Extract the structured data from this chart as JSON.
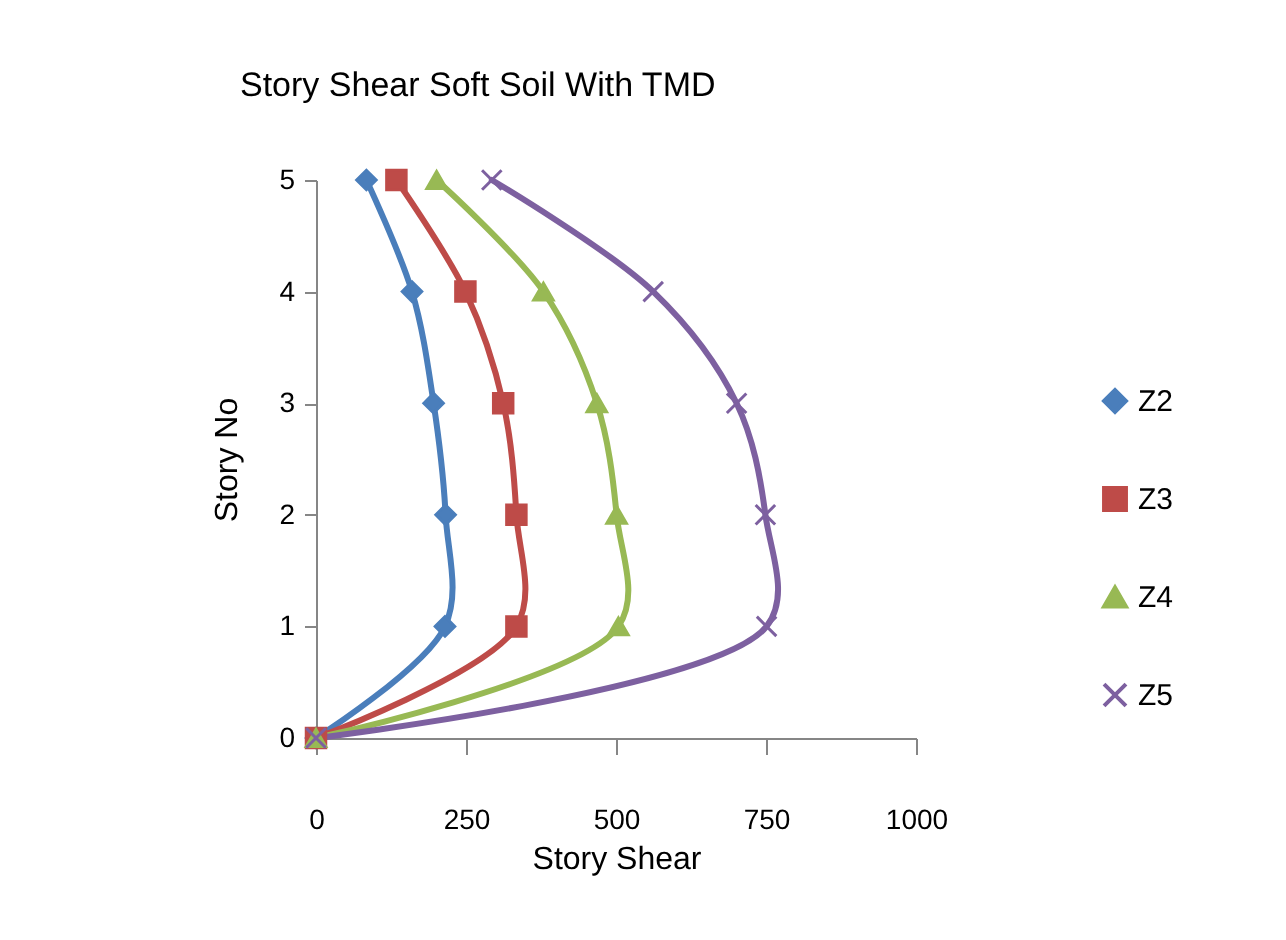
{
  "chart_data": {
    "type": "line",
    "title": "Story Shear Soft Soil With TMD",
    "xlabel": "Story Shear",
    "ylabel": "Story No",
    "xlim": [
      0,
      1000
    ],
    "xticks": [
      0,
      250,
      500,
      750,
      1000
    ],
    "ylim": [
      0,
      5
    ],
    "yticks": [
      0,
      1,
      2,
      3,
      4,
      5
    ],
    "grid": false,
    "legend": "right",
    "line_style": "solid",
    "series": [
      {
        "name": "Z2",
        "color": "#4a7ebb",
        "marker": "diamond",
        "x": [
          0,
          215,
          216,
          196,
          160,
          84
        ],
        "values": [
          0,
          1,
          2,
          3,
          4,
          5
        ]
      },
      {
        "name": "Z3",
        "color": "#be4b48",
        "marker": "square",
        "x": [
          0,
          334,
          334,
          312,
          249,
          134
        ],
        "values": [
          0,
          1,
          2,
          3,
          4,
          5
        ]
      },
      {
        "name": "Z4",
        "color": "#98b954",
        "marker": "triangle",
        "x": [
          0,
          504,
          501,
          468,
          379,
          201
        ],
        "values": [
          0,
          1,
          2,
          3,
          4,
          5
        ]
      },
      {
        "name": "Z5",
        "color": "#7d60a0",
        "marker": "cross",
        "x": [
          0,
          751,
          749,
          701,
          562,
          293
        ],
        "values": [
          0,
          1,
          2,
          3,
          4,
          5
        ]
      }
    ]
  }
}
